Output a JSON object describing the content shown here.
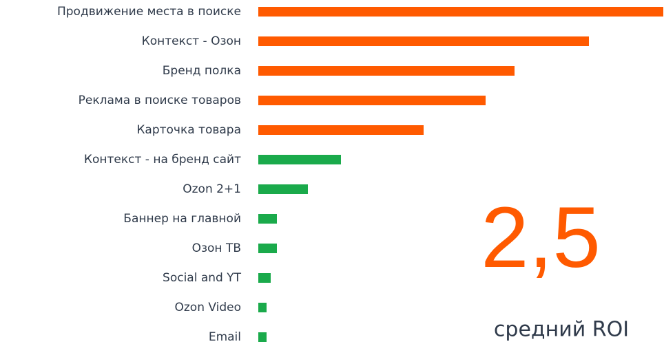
{
  "chart_data": {
    "type": "hbar",
    "categories": [
      "Продвижение места в поиске",
      "Контекст - Озон",
      "Бренд полка",
      "Реклама в поиске товаров",
      "Карточка товара",
      "Контекст - на бренд сайт",
      "Ozon 2+1",
      "Баннер на главной",
      "Озон ТВ",
      "Social and YT",
      "Ozon Video",
      "Email"
    ],
    "values": [
      98,
      80,
      62,
      55,
      40,
      20,
      12,
      4.5,
      4.5,
      3,
      2,
      2
    ],
    "colors": [
      "#ff5a00",
      "#ff5a00",
      "#ff5a00",
      "#ff5a00",
      "#ff5a00",
      "#1aaa4b",
      "#1aaa4b",
      "#1aaa4b",
      "#1aaa4b",
      "#1aaa4b",
      "#1aaa4b",
      "#1aaa4b"
    ],
    "annotation": "2,5",
    "annotation_caption": "средний ROI"
  }
}
